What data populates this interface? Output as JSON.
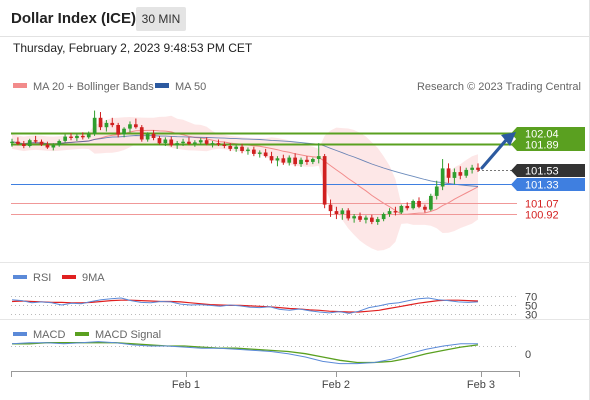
{
  "header": {
    "title": "Dollar Index (ICE)",
    "timeframe": "30 MIN",
    "datetime": "Thursday, February 2, 2023 9:48:53 PM CET"
  },
  "colors": {
    "bollinger": "#f28b8b",
    "ma50": "#2c5aa0",
    "resistance": "#5aa020",
    "support_blue": "#3f7fe0",
    "support_red": "#f09898",
    "candle_up": "#2f9e2f",
    "candle_down": "#d02020",
    "last_price_bg": "#333333",
    "rsi": "#5b8ad8",
    "ninema": "#e02020",
    "macd": "#5b8ad8",
    "macd_signal": "#5aa020",
    "arrow": "#2c5aa0"
  },
  "legend": {
    "bb_label": "MA 20 + Bollinger Bands",
    "ma50_label": "MA 50",
    "copyright": "Research © 2023 Trading Central",
    "rsi_label": "RSI",
    "ninema_label": "9MA",
    "macd_label": "MACD",
    "macd_signal_label": "MACD Signal"
  },
  "chart_data": [
    {
      "type": "candlestick",
      "title": "Dollar Index (ICE)",
      "price_levels": [
        {
          "value": 102.04,
          "label": "102.04",
          "kind": "resistance"
        },
        {
          "value": 101.89,
          "label": "101.89",
          "kind": "resistance"
        },
        {
          "value": 101.53,
          "label": "101.53",
          "kind": "last"
        },
        {
          "value": 101.33,
          "label": "101.33",
          "kind": "pivot"
        },
        {
          "value": 101.07,
          "label": "101.07",
          "kind": "support"
        },
        {
          "value": 100.92,
          "label": "100.92",
          "kind": "support"
        }
      ],
      "x_ticks": [
        "Feb 1",
        "Feb 2",
        "Feb 3"
      ],
      "candles": [
        [
          101.9,
          101.96,
          101.85,
          101.92
        ],
        [
          101.92,
          101.98,
          101.87,
          101.89
        ],
        [
          101.89,
          101.93,
          101.83,
          101.86
        ],
        [
          101.86,
          101.96,
          101.84,
          101.94
        ],
        [
          101.94,
          102.0,
          101.9,
          101.92
        ],
        [
          101.92,
          101.95,
          101.86,
          101.88
        ],
        [
          101.88,
          101.92,
          101.82,
          101.84
        ],
        [
          101.84,
          101.9,
          101.8,
          101.87
        ],
        [
          101.87,
          101.95,
          101.85,
          101.93
        ],
        [
          101.93,
          102.02,
          101.91,
          101.99
        ],
        [
          101.99,
          102.04,
          101.94,
          101.97
        ],
        [
          101.97,
          102.03,
          101.93,
          102.0
        ],
        [
          102.0,
          102.05,
          101.95,
          101.98
        ],
        [
          101.98,
          102.06,
          101.96,
          102.03
        ],
        [
          102.03,
          102.35,
          102.0,
          102.25
        ],
        [
          102.25,
          102.33,
          102.08,
          102.12
        ],
        [
          102.12,
          102.22,
          102.06,
          102.18
        ],
        [
          102.18,
          102.25,
          102.12,
          102.15
        ],
        [
          102.15,
          102.18,
          101.98,
          102.02
        ],
        [
          102.02,
          102.12,
          101.98,
          102.1
        ],
        [
          102.1,
          102.2,
          102.05,
          102.16
        ],
        [
          102.16,
          102.24,
          102.1,
          102.12
        ],
        [
          102.12,
          102.15,
          101.92,
          101.95
        ],
        [
          101.95,
          102.05,
          101.92,
          102.03
        ],
        [
          102.03,
          102.08,
          101.94,
          101.97
        ],
        [
          101.97,
          102.0,
          101.88,
          101.9
        ],
        [
          101.9,
          101.98,
          101.86,
          101.95
        ],
        [
          101.95,
          101.99,
          101.85,
          101.87
        ],
        [
          101.87,
          101.93,
          101.82,
          101.9
        ],
        [
          101.9,
          101.96,
          101.86,
          101.92
        ],
        [
          101.92,
          101.98,
          101.87,
          101.89
        ],
        [
          101.89,
          101.94,
          101.85,
          101.91
        ],
        [
          101.91,
          101.97,
          101.88,
          101.94
        ],
        [
          101.94,
          101.98,
          101.87,
          101.89
        ],
        [
          101.89,
          101.93,
          101.84,
          101.9
        ],
        [
          101.9,
          101.95,
          101.86,
          101.88
        ],
        [
          101.88,
          101.92,
          101.83,
          101.86
        ],
        [
          101.86,
          101.9,
          101.79,
          101.82
        ],
        [
          101.82,
          101.88,
          101.78,
          101.85
        ],
        [
          101.85,
          101.89,
          101.76,
          101.79
        ],
        [
          101.79,
          101.84,
          101.74,
          101.81
        ],
        [
          101.81,
          101.85,
          101.72,
          101.75
        ],
        [
          101.75,
          101.8,
          101.7,
          101.77
        ],
        [
          101.77,
          101.82,
          101.7,
          101.72
        ],
        [
          101.72,
          101.78,
          101.62,
          101.66
        ],
        [
          101.66,
          101.72,
          101.58,
          101.69
        ],
        [
          101.69,
          101.74,
          101.6,
          101.63
        ],
        [
          101.63,
          101.73,
          101.59,
          101.7
        ],
        [
          101.7,
          101.76,
          101.58,
          101.61
        ],
        [
          101.61,
          101.7,
          101.57,
          101.67
        ],
        [
          101.67,
          101.72,
          101.6,
          101.64
        ],
        [
          101.64,
          101.7,
          101.61,
          101.68
        ],
        [
          101.68,
          101.9,
          101.62,
          101.72
        ],
        [
          101.72,
          101.75,
          101.0,
          101.05
        ],
        [
          101.05,
          101.12,
          100.88,
          100.96
        ],
        [
          100.96,
          101.02,
          100.85,
          100.92
        ],
        [
          100.92,
          101.0,
          100.84,
          100.97
        ],
        [
          100.97,
          101.0,
          100.83,
          100.86
        ],
        [
          100.86,
          100.92,
          100.8,
          100.89
        ],
        [
          100.89,
          100.94,
          100.81,
          100.84
        ],
        [
          100.84,
          100.9,
          100.79,
          100.87
        ],
        [
          100.87,
          100.91,
          100.78,
          100.81
        ],
        [
          100.81,
          100.88,
          100.77,
          100.85
        ],
        [
          100.85,
          100.94,
          100.82,
          100.92
        ],
        [
          100.92,
          101.0,
          100.88,
          100.96
        ],
        [
          100.96,
          101.02,
          100.9,
          100.94
        ],
        [
          100.94,
          101.05,
          100.92,
          101.03
        ],
        [
          101.03,
          101.08,
          100.97,
          101.0
        ],
        [
          101.0,
          101.12,
          100.98,
          101.1
        ],
        [
          101.1,
          101.15,
          101.0,
          101.02
        ],
        [
          101.02,
          101.05,
          100.94,
          100.98
        ],
        [
          100.98,
          101.2,
          100.96,
          101.17
        ],
        [
          101.17,
          101.38,
          101.12,
          101.3
        ],
        [
          101.3,
          101.68,
          101.25,
          101.55
        ],
        [
          101.55,
          101.62,
          101.35,
          101.42
        ],
        [
          101.42,
          101.55,
          101.33,
          101.5
        ],
        [
          101.5,
          101.58,
          101.4,
          101.45
        ],
        [
          101.45,
          101.56,
          101.42,
          101.53
        ],
        [
          101.53,
          101.6,
          101.48,
          101.56
        ],
        [
          101.56,
          101.62,
          101.5,
          101.53
        ]
      ]
    },
    {
      "type": "line",
      "name": "RSI",
      "y_ticks": [
        70,
        50,
        30
      ],
      "series": [
        {
          "name": "RSI",
          "values": [
            62,
            60,
            55,
            57,
            55,
            50,
            54,
            53,
            58,
            62,
            64,
            66,
            60,
            56,
            55,
            58,
            57,
            52,
            50,
            51,
            49,
            47,
            50,
            48,
            45,
            44,
            46,
            40,
            38,
            41,
            37,
            34,
            32,
            35,
            31,
            36,
            44,
            48,
            53,
            55,
            60,
            64,
            66,
            62,
            60,
            57,
            56,
            57
          ]
        },
        {
          "name": "9MA",
          "values": [
            58,
            59,
            58,
            57,
            56,
            56,
            55,
            55,
            56,
            58,
            60,
            61,
            61,
            60,
            59,
            58,
            58,
            57,
            55,
            53,
            51,
            50,
            49,
            49,
            48,
            47,
            46,
            44,
            42,
            41,
            39,
            38,
            36,
            35,
            34,
            34,
            36,
            38,
            42,
            46,
            50,
            54,
            57,
            60,
            61,
            61,
            60,
            59
          ]
        }
      ]
    },
    {
      "type": "line",
      "name": "MACD",
      "y_ticks": [
        0
      ],
      "series": [
        {
          "name": "MACD",
          "values": [
            0.02,
            0.03,
            0.03,
            0.02,
            0.03,
            0.04,
            0.03,
            0.01,
            0.0,
            0.0,
            -0.01,
            -0.02,
            -0.02,
            -0.03,
            -0.04,
            -0.05,
            -0.07,
            -0.1,
            -0.14,
            -0.16,
            -0.16,
            -0.15,
            -0.12,
            -0.07,
            -0.03,
            0.0,
            0.02,
            0.02
          ]
        },
        {
          "name": "MACD Signal",
          "values": [
            0.02,
            0.02,
            0.03,
            0.03,
            0.03,
            0.03,
            0.03,
            0.02,
            0.01,
            0.0,
            0.0,
            -0.01,
            -0.02,
            -0.02,
            -0.03,
            -0.04,
            -0.05,
            -0.07,
            -0.1,
            -0.13,
            -0.15,
            -0.15,
            -0.14,
            -0.11,
            -0.07,
            -0.04,
            -0.01,
            0.01
          ]
        }
      ]
    }
  ]
}
